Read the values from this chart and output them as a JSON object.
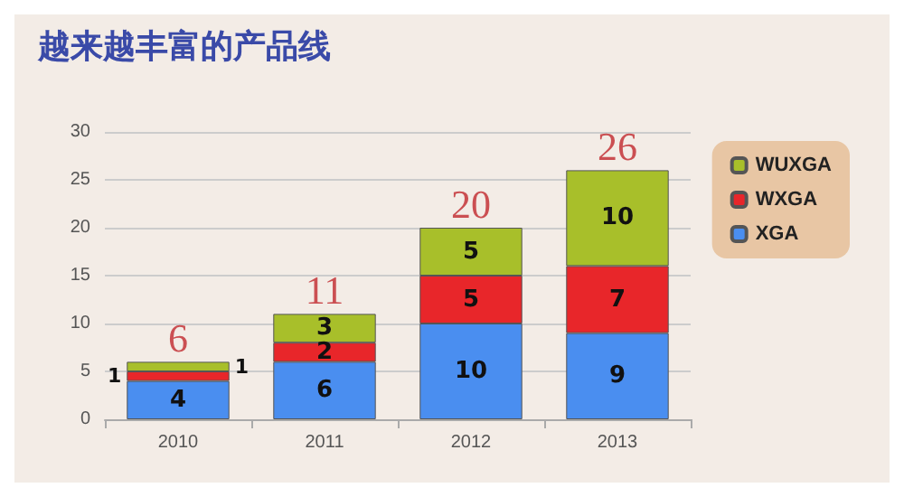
{
  "chart_data": {
    "type": "bar",
    "title": "越来越丰富的产品线",
    "stacked": true,
    "categories": [
      "2010",
      "2011",
      "2012",
      "2013"
    ],
    "series": [
      {
        "name": "XGA",
        "color": "#4a8ef0",
        "values": [
          4,
          6,
          10,
          9
        ]
      },
      {
        "name": "WXGA",
        "color": "#e8262a",
        "values": [
          1,
          2,
          5,
          7
        ]
      },
      {
        "name": "WUXGA",
        "color": "#a8bf2a",
        "values": [
          1,
          3,
          5,
          10
        ]
      }
    ],
    "totals": [
      "6",
      "11",
      "20",
      "26"
    ],
    "ylim": [
      0,
      30
    ],
    "yticks": [
      0,
      5,
      10,
      15,
      20,
      25,
      30
    ],
    "grid": "y",
    "legend": "top right",
    "data_labels": true
  }
}
